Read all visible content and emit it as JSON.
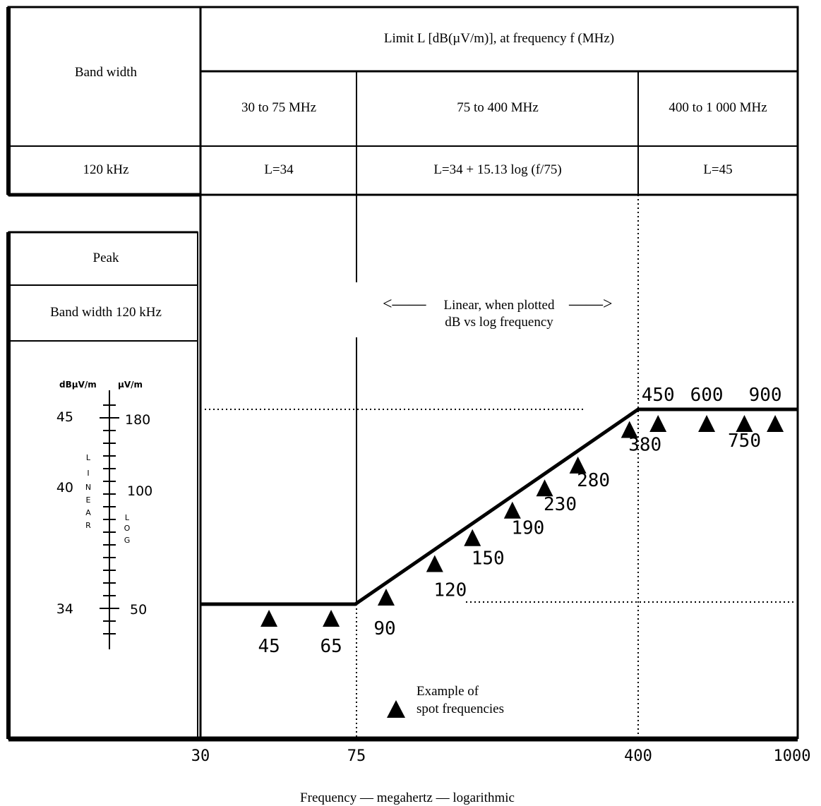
{
  "header": {
    "bandwidth_title": "Band width",
    "limit_title": "Limit L [dB(µV/m)], at frequency f (MHz)",
    "ranges": [
      "30 to 75 MHz",
      "75 to 400 MHz",
      "400 to 1 000 MHz"
    ],
    "bandwidth_value": "120 kHz",
    "formulas": [
      "L=34",
      "L=34 + 15.13 log (f/75)",
      "L=45"
    ]
  },
  "left_panel": {
    "detector": "Peak",
    "bandwidth": "Band width 120 kHz",
    "scale": {
      "unit_db": "dBµV/m",
      "unit_uv": "µV/m",
      "db_labels": [
        "45",
        "40",
        "34"
      ],
      "uv_labels": [
        "180",
        "100",
        "50"
      ],
      "linear_letters": [
        "L",
        "I",
        "N",
        "E",
        "A",
        "R"
      ],
      "log_letters": [
        "L",
        "O",
        "G"
      ]
    }
  },
  "plot": {
    "linear_note": [
      "Linear, when plotted",
      "dB vs log frequency"
    ],
    "arrow_left": "<——",
    "arrow_right": "——>",
    "legend": [
      "Example of",
      "spot frequencies"
    ]
  },
  "x_axis": {
    "ticks": [
      "30",
      "75",
      "400",
      "1000"
    ],
    "label": "Frequency — megahertz — logarithmic"
  },
  "chart_data": {
    "type": "line",
    "x_scale": "log",
    "xlim": [
      30,
      1000
    ],
    "ylim": [
      32,
      48
    ],
    "limit_line": [
      {
        "x": 30,
        "y": 34
      },
      {
        "x": 75,
        "y": 34
      },
      {
        "x": 400,
        "y": 45
      },
      {
        "x": 1000,
        "y": 45
      }
    ],
    "spot_frequencies": [
      45,
      65,
      90,
      120,
      150,
      190,
      230,
      280,
      380,
      450,
      600,
      750,
      900
    ],
    "spot_labels": [
      "45",
      "65",
      "90",
      "120",
      "150",
      "190",
      "230",
      "280",
      "380",
      "450",
      "600",
      "750",
      "900"
    ]
  }
}
